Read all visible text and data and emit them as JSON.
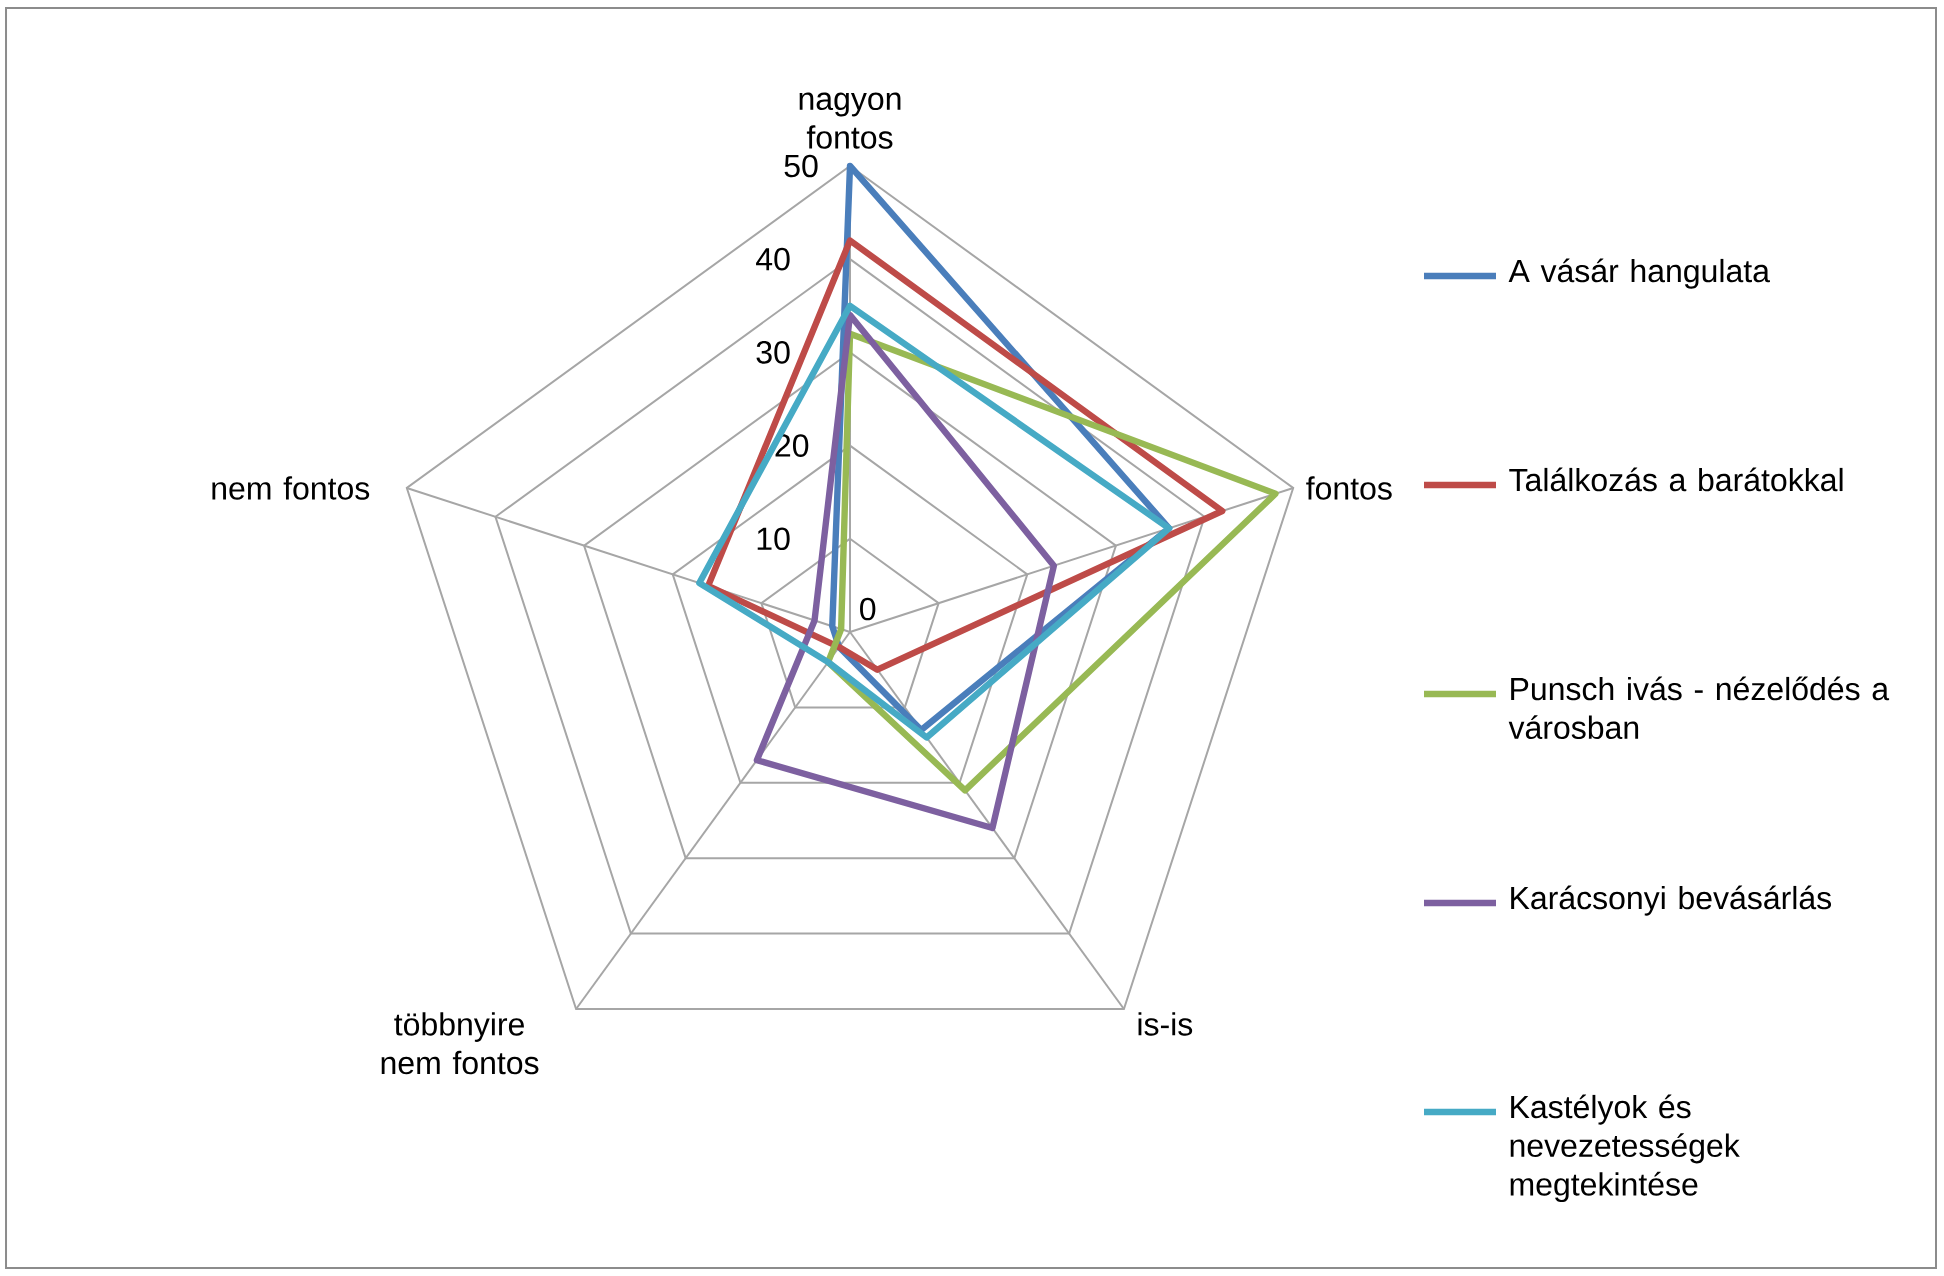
{
  "chart_data": {
    "type": "radar",
    "categories": [
      "nagyon fontos",
      "fontos",
      "is-is",
      "többnyire nem fontos",
      "nem fontos"
    ],
    "series": [
      {
        "name": "A vásár hangulata",
        "color": "#4a7ebb",
        "values": [
          50,
          36,
          13,
          2,
          2
        ]
      },
      {
        "name": "Találkozás a barátokkal",
        "color": "#be4b48",
        "values": [
          42,
          42,
          5,
          2,
          16
        ]
      },
      {
        "name": "Punsch ivás - nézelődés a városban",
        "color": "#98b954",
        "values": [
          32,
          48,
          21,
          4,
          1
        ]
      },
      {
        "name": "Karácsonyi bevásárlás",
        "color": "#7d60a0",
        "values": [
          34,
          23,
          26,
          17,
          4
        ]
      },
      {
        "name": "Kastélyok és nevezetességek megtekintése",
        "color": "#46aac5",
        "values": [
          35,
          36,
          14,
          4,
          17
        ]
      }
    ],
    "ylim": [
      0,
      50
    ],
    "yticks": [
      0,
      10,
      20,
      30,
      40,
      50
    ],
    "grid": true,
    "legend": "right"
  }
}
